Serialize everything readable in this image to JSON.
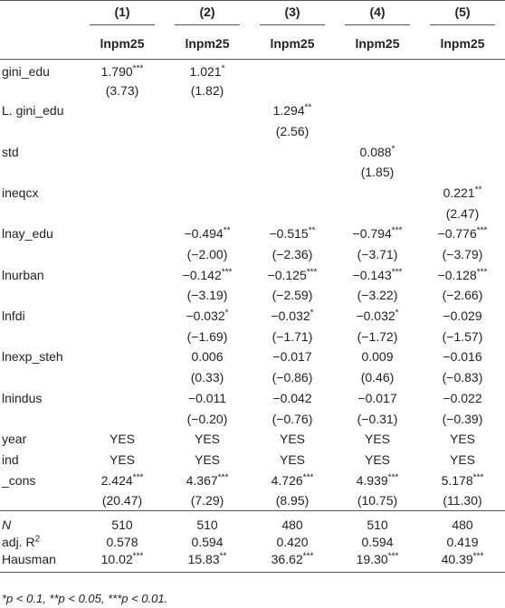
{
  "table": {
    "columns": [
      "(1)",
      "(2)",
      "(3)",
      "(4)",
      "(5)"
    ],
    "depvar": [
      "lnpm25",
      "lnpm25",
      "lnpm25",
      "lnpm25",
      "lnpm25"
    ],
    "rows": [
      {
        "label": "gini_edu",
        "values": [
          {
            "coef": "1.790",
            "stars": "***"
          },
          {
            "coef": "1.021",
            "stars": "*"
          },
          null,
          null,
          null
        ],
        "se": [
          "(3.73)",
          "(1.82)",
          null,
          null,
          null
        ]
      },
      {
        "label": "L. gini_edu",
        "values": [
          null,
          null,
          {
            "coef": "1.294",
            "stars": "**"
          },
          null,
          null
        ],
        "se": [
          null,
          null,
          "(2.56)",
          null,
          null
        ]
      },
      {
        "label": "std",
        "values": [
          null,
          null,
          null,
          {
            "coef": "0.088",
            "stars": "*"
          },
          null
        ],
        "se": [
          null,
          null,
          null,
          "(1.85)",
          null
        ]
      },
      {
        "label": "ineqcx",
        "values": [
          null,
          null,
          null,
          null,
          {
            "coef": "0.221",
            "stars": "**"
          }
        ],
        "se": [
          null,
          null,
          null,
          null,
          "(2.47)"
        ]
      },
      {
        "label": "lnay_edu",
        "values": [
          null,
          {
            "coef": "−0.494",
            "stars": "**"
          },
          {
            "coef": "−0.515",
            "stars": "**"
          },
          {
            "coef": "−0.794",
            "stars": "***"
          },
          {
            "coef": "−0.776",
            "stars": "***"
          }
        ],
        "se": [
          null,
          "(−2.00)",
          "(−2.36)",
          "(−3.71)",
          "(−3.79)"
        ]
      },
      {
        "label": "lnurban",
        "values": [
          null,
          {
            "coef": "−0.142",
            "stars": "***"
          },
          {
            "coef": "−0.125",
            "stars": "***"
          },
          {
            "coef": "−0.143",
            "stars": "***"
          },
          {
            "coef": "−0.128",
            "stars": "***"
          }
        ],
        "se": [
          null,
          "(−3.19)",
          "(−2.59)",
          "(−3.22)",
          "(−2.66)"
        ]
      },
      {
        "label": "lnfdi",
        "values": [
          null,
          {
            "coef": "−0.032",
            "stars": "*"
          },
          {
            "coef": "−0.032",
            "stars": "*"
          },
          {
            "coef": "−0.032",
            "stars": "*"
          },
          {
            "coef": "−0.029"
          }
        ],
        "se": [
          null,
          "(−1.69)",
          "(−1.71)",
          "(−1.72)",
          "(−1.57)"
        ]
      },
      {
        "label": "lnexp_steh",
        "values": [
          null,
          {
            "coef": "0.006"
          },
          {
            "coef": "−0.017"
          },
          {
            "coef": "0.009"
          },
          {
            "coef": "−0.016"
          }
        ],
        "se": [
          null,
          "(0.33)",
          "(−0.86)",
          "(0.46)",
          "(−0.83)"
        ]
      },
      {
        "label": "lnindus",
        "values": [
          null,
          {
            "coef": "−0.011"
          },
          {
            "coef": "−0.042"
          },
          {
            "coef": "−0.017"
          },
          {
            "coef": "−0.022"
          }
        ],
        "se": [
          null,
          "(−0.20)",
          "(−0.76)",
          "(−0.31)",
          "(−0.39)"
        ]
      },
      {
        "label": "year",
        "values": [
          "YES",
          "YES",
          "YES",
          "YES",
          "YES"
        ]
      },
      {
        "label": "ind",
        "values": [
          "YES",
          "YES",
          "YES",
          "YES",
          "YES"
        ]
      },
      {
        "label": "_cons",
        "values": [
          {
            "coef": "2.424",
            "stars": "***"
          },
          {
            "coef": "4.367",
            "stars": "***"
          },
          {
            "coef": "4.726",
            "stars": "***"
          },
          {
            "coef": "4.939",
            "stars": "***"
          },
          {
            "coef": "5.178",
            "stars": "***"
          }
        ],
        "se": [
          "(20.47)",
          "(7.29)",
          "(8.95)",
          "(10.75)",
          "(11.30)"
        ]
      }
    ],
    "stats": [
      {
        "label": "N",
        "values": [
          "510",
          "510",
          "480",
          "510",
          "480"
        ]
      },
      {
        "label": "adj. R",
        "label_sup": "2",
        "values": [
          "0.578",
          "0.594",
          "0.420",
          "0.594",
          "0.419"
        ]
      },
      {
        "label": "Hausman",
        "values": [
          {
            "coef": "10.02",
            "stars": "***"
          },
          {
            "coef": "15.83",
            "stars": "**"
          },
          {
            "coef": "36.62",
            "stars": "***"
          },
          {
            "coef": "19.30",
            "stars": "***"
          },
          {
            "coef": "40.39",
            "stars": "***"
          }
        ]
      }
    ],
    "note": "*p < 0.1, **p < 0.05, ***p < 0.01."
  }
}
